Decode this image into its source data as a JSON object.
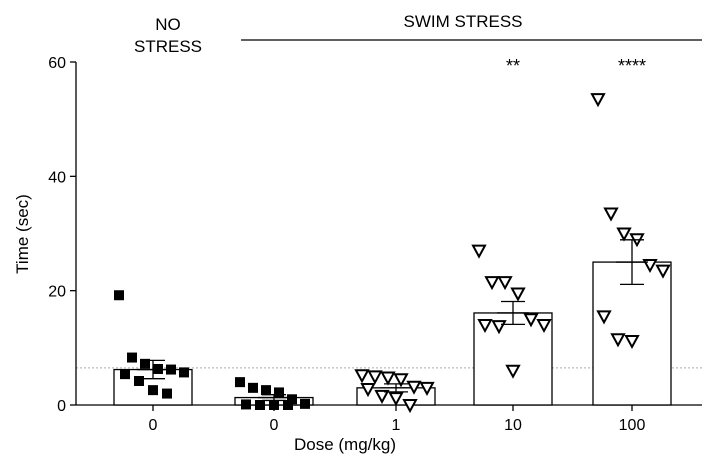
{
  "chart_data": {
    "type": "bar",
    "xlabel": "Dose (mg/kg)",
    "ylabel": "Time (sec)",
    "ylim": [
      0,
      60
    ],
    "yticks": [
      0,
      20,
      40,
      60
    ],
    "grid": false,
    "legend": "none",
    "reference_line": 6.5,
    "group_labels": {
      "no_stress": [
        "NO",
        "STRESS"
      ],
      "swim_stress": "SWIM STRESS"
    },
    "categories": [
      "0",
      "0",
      "1",
      "10",
      "100"
    ],
    "groups": [
      "NO STRESS",
      "SWIM STRESS",
      "SWIM STRESS",
      "SWIM STRESS",
      "SWIM STRESS"
    ],
    "values": [
      6.2,
      1.3,
      3.0,
      16.1,
      25.0
    ],
    "sem": [
      1.6,
      0.5,
      0.7,
      2.0,
      3.9
    ],
    "significance": [
      "",
      "",
      "",
      "**",
      "****"
    ],
    "marker": [
      "square",
      "square",
      "triangle-down",
      "triangle-down",
      "triangle-down"
    ],
    "points": [
      [
        19.2,
        8.3,
        7.2,
        6.3,
        6.2,
        5.7,
        5.4,
        4.2,
        2.6,
        2.0
      ],
      [
        4.0,
        3.0,
        2.6,
        2.2,
        1.0,
        0.2,
        0.1,
        0.0,
        0.0,
        0.0
      ],
      [
        5.2,
        5.0,
        4.8,
        4.5,
        3.2,
        3.0,
        2.8,
        1.6,
        1.2,
        0.0
      ],
      [
        27.0,
        21.5,
        21.5,
        19.5,
        15.0,
        14.0,
        14.0,
        13.8,
        6.0
      ],
      [
        53.5,
        33.5,
        30.0,
        29.0,
        24.5,
        23.5,
        15.5,
        11.5,
        11.2
      ]
    ],
    "colors": {
      "axis": "#000000",
      "bar_fill": "#ffffff",
      "bar_stroke": "#000000",
      "reference_line": "#aaaaaa",
      "marker_filled": "#000000",
      "marker_open_fill": "#ffffff"
    }
  }
}
